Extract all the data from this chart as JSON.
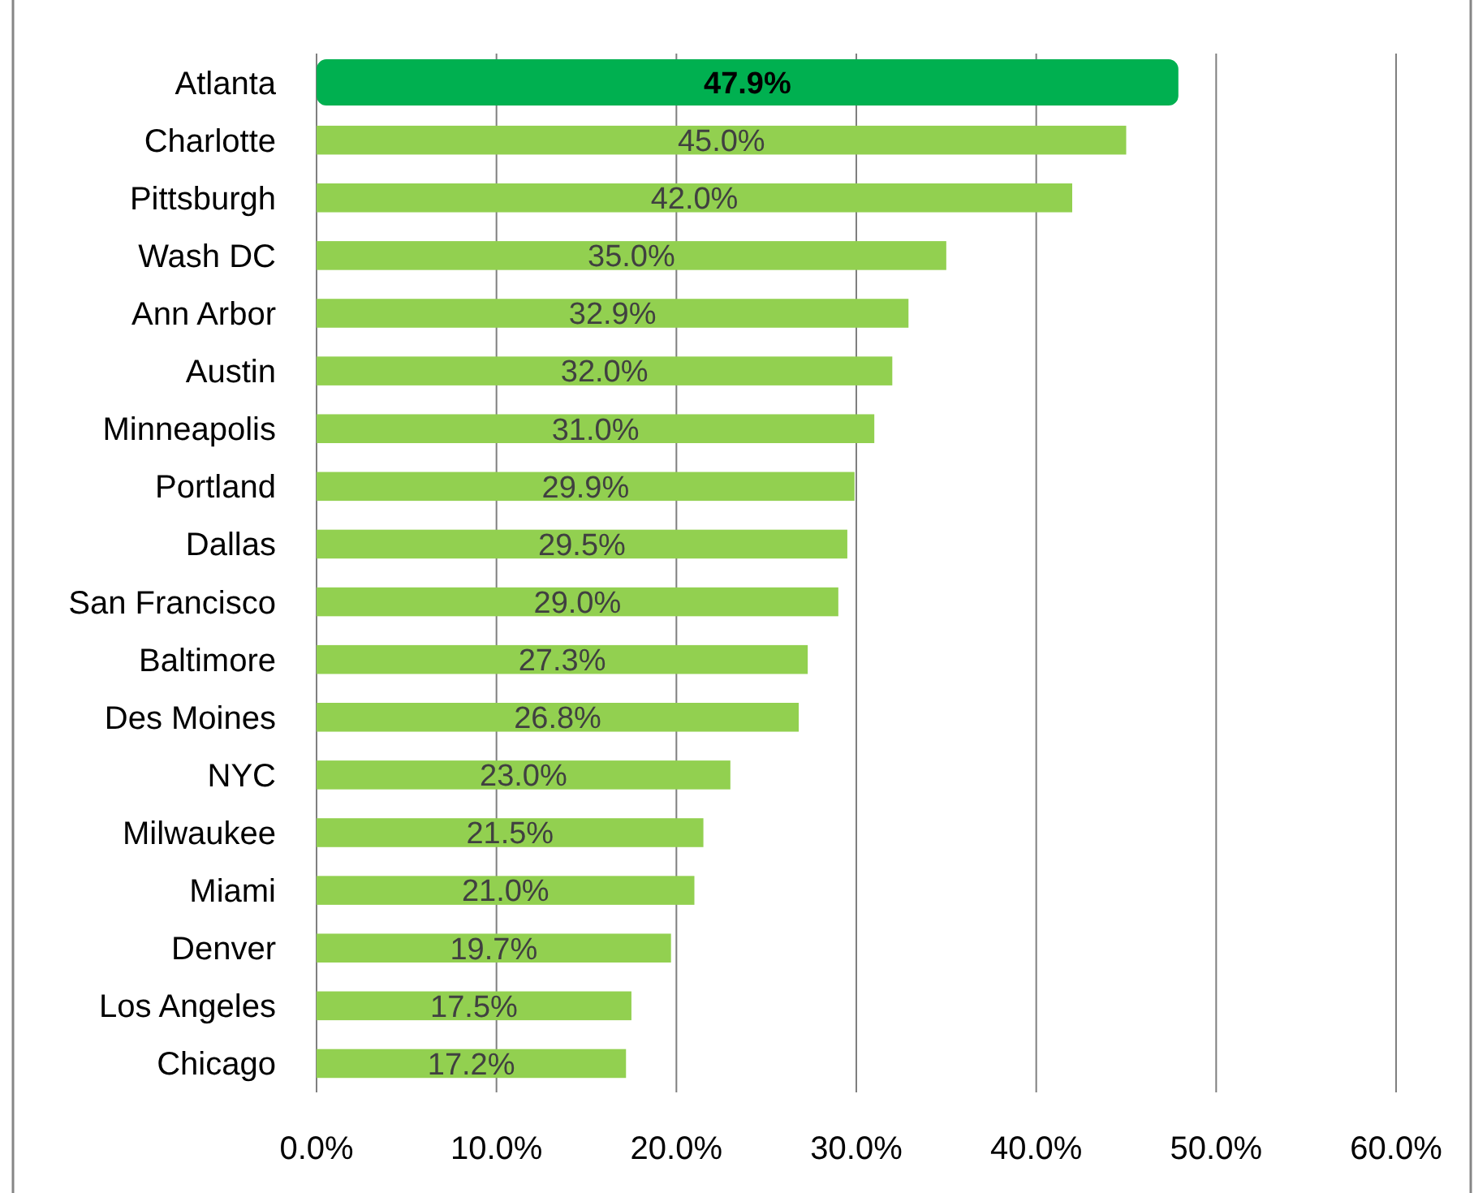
{
  "chart_data": {
    "type": "bar",
    "orientation": "horizontal",
    "categories": [
      "Atlanta",
      "Charlotte",
      "Pittsburgh",
      "Wash DC",
      "Ann Arbor",
      "Austin",
      "Minneapolis",
      "Portland",
      "Dallas",
      "San Francisco",
      "Baltimore",
      "Des Moines",
      "NYC",
      "Milwaukee",
      "Miami",
      "Denver",
      "Los Angeles",
      "Chicago"
    ],
    "values": [
      47.9,
      45.0,
      42.0,
      35.0,
      32.9,
      32.0,
      31.0,
      29.9,
      29.5,
      29.0,
      27.3,
      26.8,
      23.0,
      21.5,
      21.0,
      19.7,
      17.5,
      17.2
    ],
    "colors": [
      "#00b050",
      "#92d050",
      "#92d050",
      "#92d050",
      "#92d050",
      "#92d050",
      "#92d050",
      "#92d050",
      "#92d050",
      "#92d050",
      "#92d050",
      "#92d050",
      "#92d050",
      "#92d050",
      "#92d050",
      "#92d050",
      "#92d050",
      "#92d050"
    ],
    "value_labels": [
      "47.9%",
      "45.0%",
      "42.0%",
      "35.0%",
      "32.9%",
      "32.0%",
      "31.0%",
      "29.9%",
      "29.5%",
      "29.0%",
      "27.3%",
      "26.8%",
      "23.0%",
      "21.5%",
      "21.0%",
      "19.7%",
      "17.5%",
      "17.2%"
    ],
    "xlim": [
      0,
      60
    ],
    "xticks": [
      {
        "value": 0,
        "label": "0.0%"
      },
      {
        "value": 10,
        "label": "10.0%"
      },
      {
        "value": 20,
        "label": "20.0%"
      },
      {
        "value": 30,
        "label": "30.0%"
      },
      {
        "value": 40,
        "label": "40.0%"
      },
      {
        "value": 50,
        "label": "50.0%"
      },
      {
        "value": 60,
        "label": "60.0%"
      }
    ],
    "grid": "x"
  }
}
